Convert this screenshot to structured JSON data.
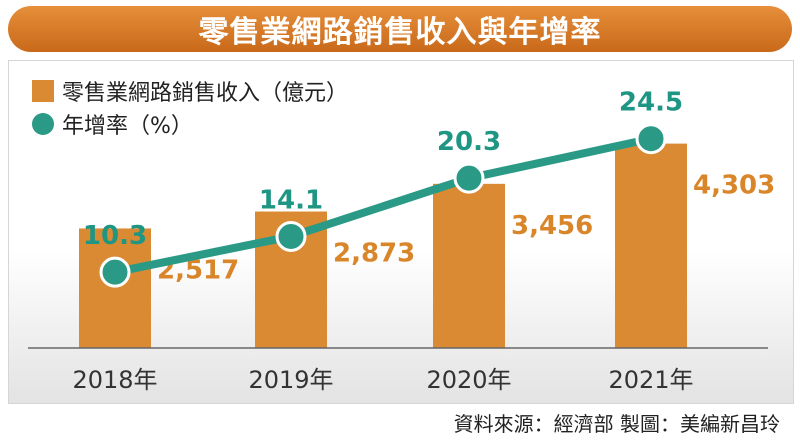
{
  "title": "零售業網路銷售收入與年增率",
  "source_text": "資料來源：經濟部 製圖：美編新昌玲",
  "colors": {
    "bar": "#d98a32",
    "line": "#2a9a86",
    "title_bg": "#d97a28"
  },
  "chart_data": {
    "type": "bar",
    "categories": [
      "2018年",
      "2019年",
      "2020年",
      "2021年"
    ],
    "series": [
      {
        "name": "零售業網路銷售收入（億元）",
        "type": "bar",
        "values": [
          2517,
          2873,
          3456,
          4303
        ],
        "labels": [
          "2,517",
          "2,873",
          "3,456",
          "4,303"
        ]
      },
      {
        "name": "年增率（%）",
        "type": "line",
        "values": [
          10.3,
          14.1,
          20.3,
          24.5
        ],
        "labels": [
          "10.3",
          "14.1",
          "20.3",
          "24.5"
        ]
      }
    ],
    "legend_position": "top-left",
    "grid": false
  }
}
